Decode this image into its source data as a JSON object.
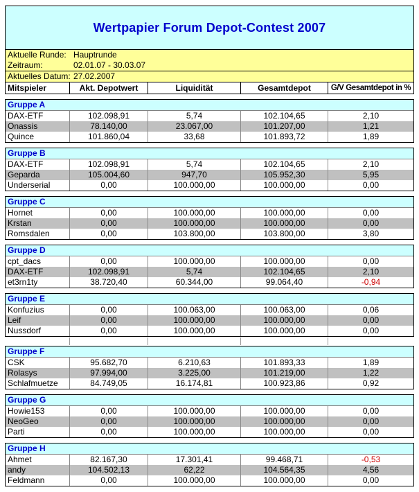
{
  "title": "Wertpapier Forum Depot-Contest 2007",
  "info": {
    "round_label": "Aktuelle Runde:",
    "round_value": "Hauptrunde",
    "period_label": "Zeitraum:",
    "period_value": "02.01.07 - 30.03.07",
    "date_label": "Aktuelles Datum:",
    "date_value": "27.02.2007"
  },
  "columns": [
    "Mitspieler",
    "Akt. Depotwert",
    "Liquidität",
    "Gesamtdepot",
    "G/V Gesamtdepot in %"
  ],
  "colors": {
    "title_blue": "#0000CC",
    "header_cyan": "#CCFFFF",
    "info_yellow": "#FFFF99",
    "alt_row_gray": "#C0C0C0",
    "negative_red": "#CC0000",
    "border_black": "#000000"
  },
  "groups": [
    {
      "name": "Gruppe A",
      "gap_ruler_after": false,
      "rows": [
        [
          "DAX-ETF",
          "102.098,91",
          "5,74",
          "102.104,65",
          "2,10"
        ],
        [
          "Onassis",
          "78.140,00",
          "23.067,00",
          "101.207,00",
          "1,21"
        ],
        [
          "Quince",
          "101.860,04",
          "33,68",
          "101.893,72",
          "1,89"
        ]
      ]
    },
    {
      "name": "Gruppe B",
      "gap_ruler_after": false,
      "rows": [
        [
          "DAX-ETF",
          "102.098,91",
          "5,74",
          "102.104,65",
          "2,10"
        ],
        [
          "Geparda",
          "105.004,60",
          "947,70",
          "105.952,30",
          "5,95"
        ],
        [
          "Underserial",
          "0,00",
          "100.000,00",
          "100.000,00",
          "0,00"
        ]
      ]
    },
    {
      "name": "Gruppe C",
      "gap_ruler_after": false,
      "rows": [
        [
          "Hornet",
          "0,00",
          "100.000,00",
          "100.000,00",
          "0,00"
        ],
        [
          "Krstan",
          "0,00",
          "100.000,00",
          "100.000,00",
          "0,00"
        ],
        [
          "Romsdalen",
          "0,00",
          "103.800,00",
          "103.800,00",
          "3,80"
        ]
      ]
    },
    {
      "name": "Gruppe D",
      "gap_ruler_after": false,
      "rows": [
        [
          "cpt_dacs",
          "0,00",
          "100.000,00",
          "100.000,00",
          "0,00"
        ],
        [
          "DAX-ETF",
          "102.098,91",
          "5,74",
          "102.104,65",
          "2,10"
        ],
        [
          "et3rn1ty",
          "38.720,40",
          "60.344,00",
          "99.064,40",
          "-0,94"
        ]
      ]
    },
    {
      "name": "Gruppe E",
      "gap_ruler_after": true,
      "rows": [
        [
          "Konfuzius",
          "0,00",
          "100.063,00",
          "100.063,00",
          "0,06"
        ],
        [
          "Leif",
          "0,00",
          "100.000,00",
          "100.000,00",
          "0,00"
        ],
        [
          "Nussdorf",
          "0,00",
          "100.000,00",
          "100.000,00",
          "0,00"
        ]
      ]
    },
    {
      "name": "Gruppe F",
      "gap_ruler_after": false,
      "rows": [
        [
          "CSK",
          "95.682,70",
          "6.210,63",
          "101.893,33",
          "1,89"
        ],
        [
          "Rolasys",
          "97.994,00",
          "3.225,00",
          "101.219,00",
          "1,22"
        ],
        [
          "Schlafmuetze",
          "84.749,05",
          "16.174,81",
          "100.923,86",
          "0,92"
        ]
      ]
    },
    {
      "name": "Gruppe G",
      "gap_ruler_after": false,
      "rows": [
        [
          "Howie153",
          "0,00",
          "100.000,00",
          "100.000,00",
          "0,00"
        ],
        [
          "NeoGeo",
          "0,00",
          "100.000,00",
          "100.000,00",
          "0,00"
        ],
        [
          "Parti",
          "0,00",
          "100.000,00",
          "100.000,00",
          "0,00"
        ]
      ]
    },
    {
      "name": "Gruppe H",
      "gap_ruler_after": false,
      "rows": [
        [
          "Ahmet",
          "82.167,30",
          "17.301,41",
          "99.468,71",
          "-0,53"
        ],
        [
          "andy",
          "104.502,13",
          "62,22",
          "104.564,35",
          "4,56"
        ],
        [
          "Feldmann",
          "0,00",
          "100.000,00",
          "100.000,00",
          "0,00"
        ]
      ]
    }
  ]
}
